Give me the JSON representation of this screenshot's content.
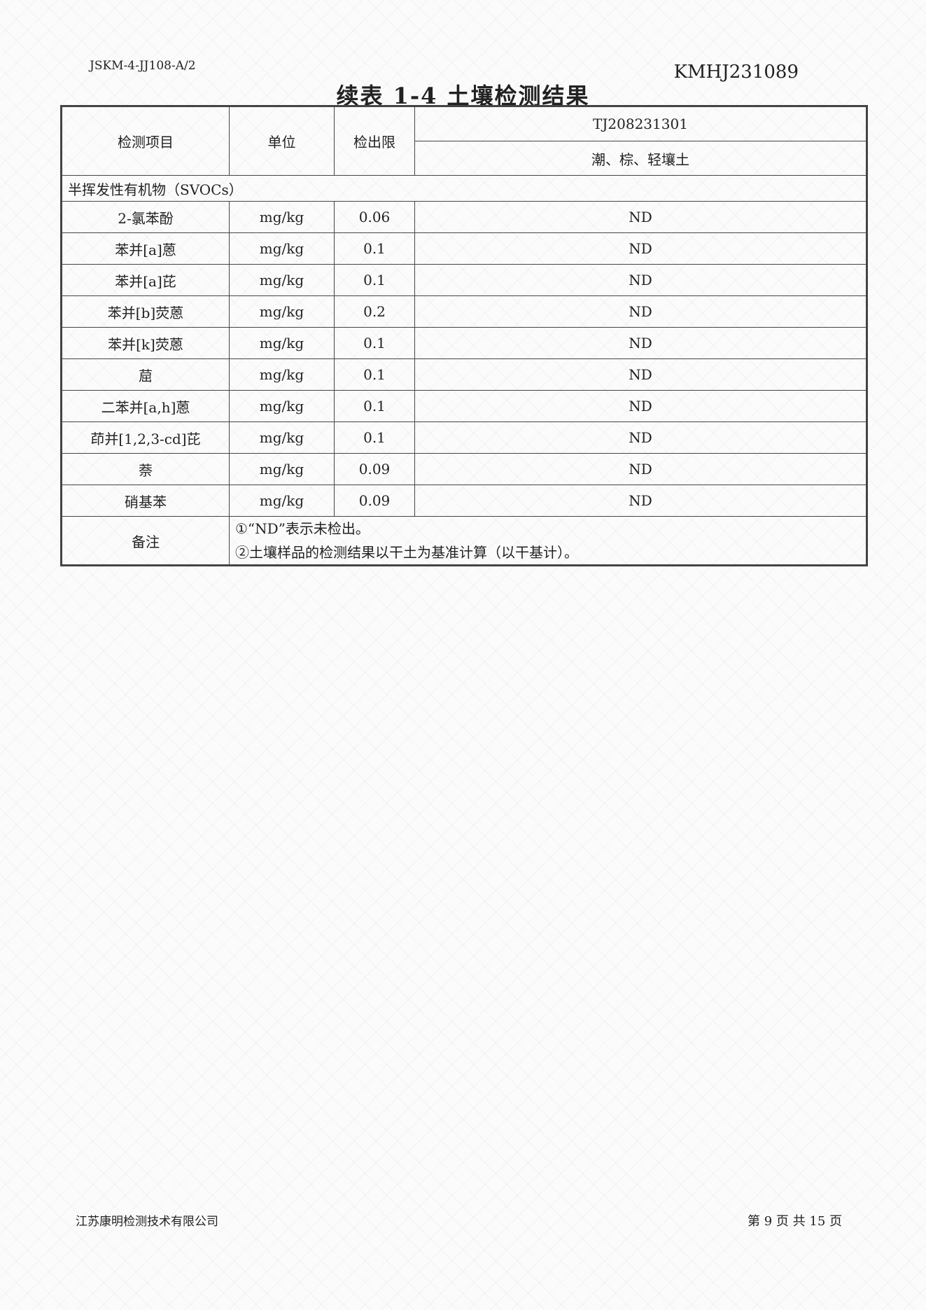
{
  "header": {
    "doc_id": "JSKM-4-JJ108-A/2",
    "report_no": "KMHJ231089",
    "title": "续表 1-4  土壤检测结果"
  },
  "table": {
    "columns": {
      "item": "检测项目",
      "unit": "单位",
      "limit": "检出限",
      "sample_id": "TJ208231301",
      "sample_desc": "潮、棕、轻壤土"
    },
    "group": "半挥发性有机物（SVOCs）",
    "rows": [
      {
        "item": "2-氯苯酚",
        "unit": "mg/kg",
        "limit": "0.06",
        "result": "ND"
      },
      {
        "item": "苯并[a]蒽",
        "unit": "mg/kg",
        "limit": "0.1",
        "result": "ND"
      },
      {
        "item": "苯并[a]芘",
        "unit": "mg/kg",
        "limit": "0.1",
        "result": "ND"
      },
      {
        "item": "苯并[b]荧蒽",
        "unit": "mg/kg",
        "limit": "0.2",
        "result": "ND"
      },
      {
        "item": "苯并[k]荧蒽",
        "unit": "mg/kg",
        "limit": "0.1",
        "result": "ND"
      },
      {
        "item": "䓛",
        "unit": "mg/kg",
        "limit": "0.1",
        "result": "ND"
      },
      {
        "item": "二苯并[a,h]蒽",
        "unit": "mg/kg",
        "limit": "0.1",
        "result": "ND"
      },
      {
        "item": "茚并[1,2,3-cd]芘",
        "unit": "mg/kg",
        "limit": "0.1",
        "result": "ND"
      },
      {
        "item": "萘",
        "unit": "mg/kg",
        "limit": "0.09",
        "result": "ND"
      },
      {
        "item": "硝基苯",
        "unit": "mg/kg",
        "limit": "0.09",
        "result": "ND"
      }
    ],
    "remarks_label": "备注",
    "remarks": [
      "①“ND”表示未检出。",
      "②土壤样品的检测结果以干土为基准计算（以干基计）。"
    ]
  },
  "footer": {
    "company": "江苏康明检测技术有限公司",
    "page": "第 9 页 共 15 页"
  }
}
